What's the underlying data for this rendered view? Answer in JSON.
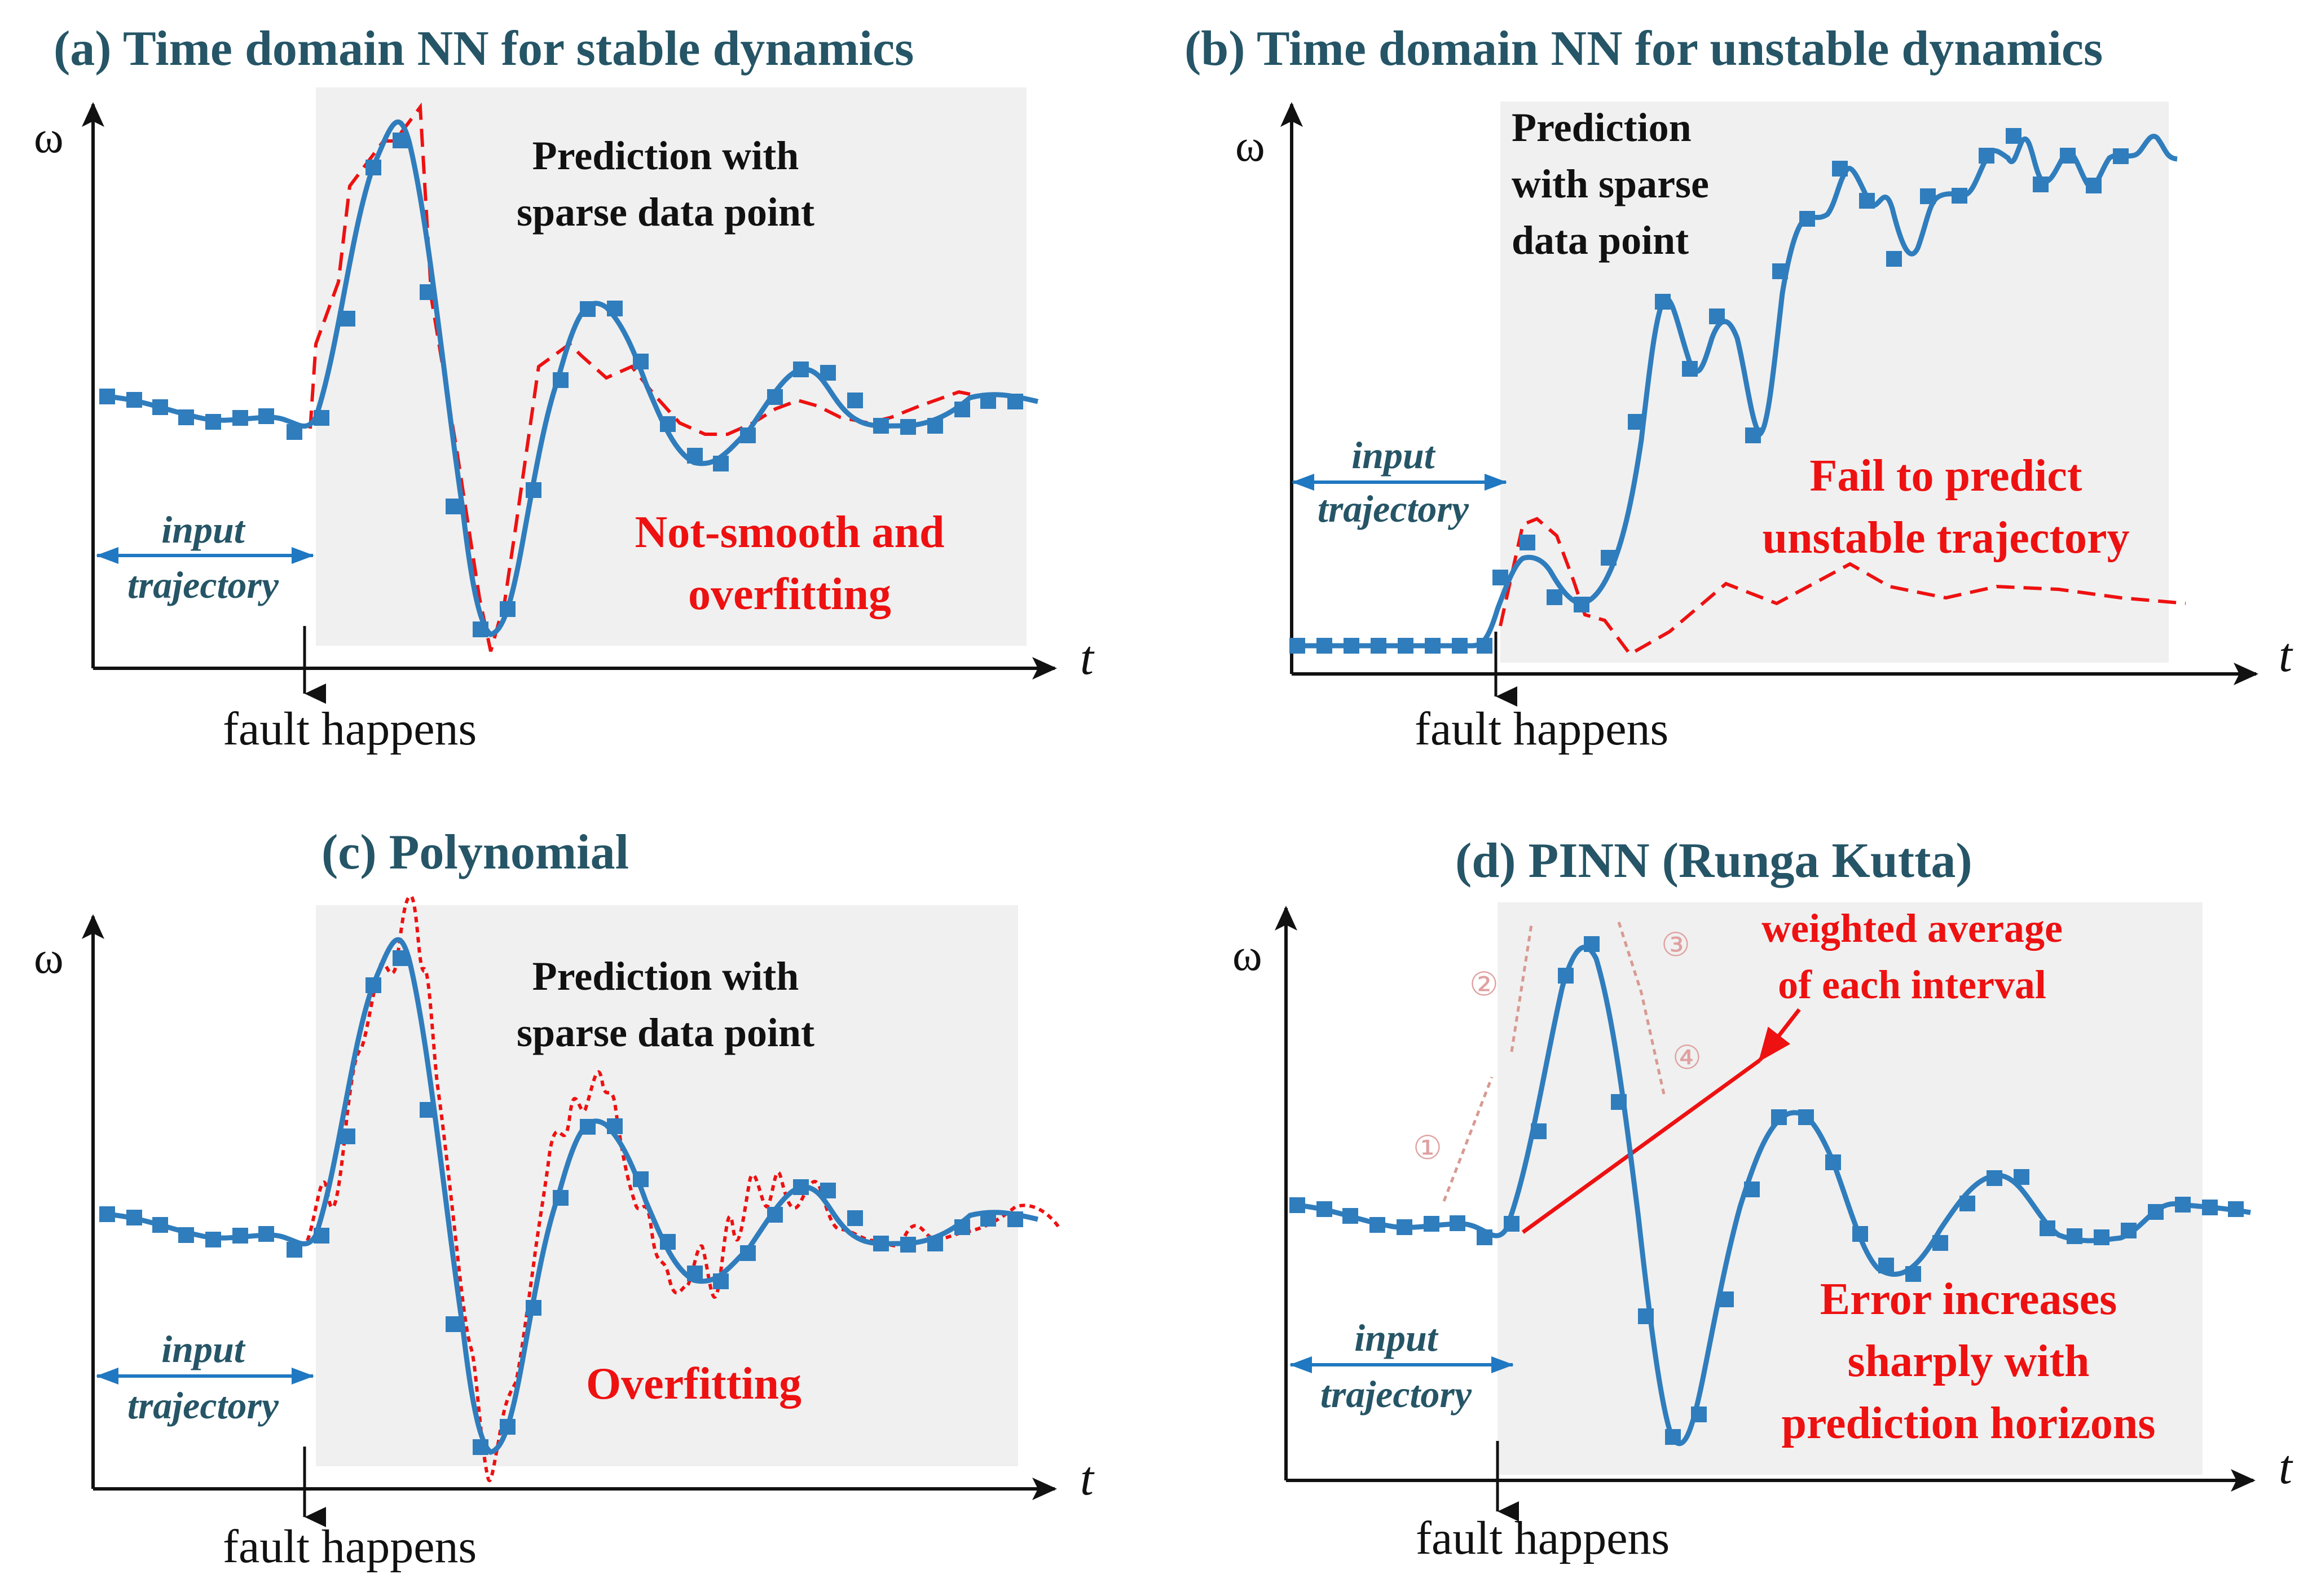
{
  "panels": {
    "a": {
      "title": "(a) Time domain NN for stable dynamics",
      "prediction_label": [
        "Prediction with",
        "sparse data point"
      ],
      "red_label": [
        "Not-smooth and",
        "overfitting"
      ]
    },
    "b": {
      "title": "(b) Time domain NN for unstable dynamics",
      "prediction_label": [
        "Prediction",
        "with sparse",
        "data point"
      ],
      "red_label": [
        "Fail to predict",
        "unstable trajectory"
      ]
    },
    "c": {
      "title": "(c)   Polynomial",
      "prediction_label": [
        "Prediction with",
        "sparse data point"
      ],
      "red_label": [
        "Overfitting"
      ]
    },
    "d": {
      "title": "(d)   PINN (Runga Kutta)",
      "red_label": [
        "Error increases",
        "sharply with",
        "prediction horizons"
      ],
      "annotation": [
        "weighted average",
        "of each interval"
      ],
      "interval_markers": [
        "①",
        "②",
        "③",
        "④"
      ]
    }
  },
  "common": {
    "y_axis_label": "ω",
    "x_axis_label": "t",
    "fault_label": "fault happens",
    "input_label": [
      "input",
      "trajectory"
    ]
  },
  "colors": {
    "title": "#255566",
    "curve": "#2f7dbd",
    "marker": "#2f7dbd",
    "prediction_error": "#ee1111",
    "shading": "#f0f0f0",
    "input_arrow": "#1f78c1"
  }
}
